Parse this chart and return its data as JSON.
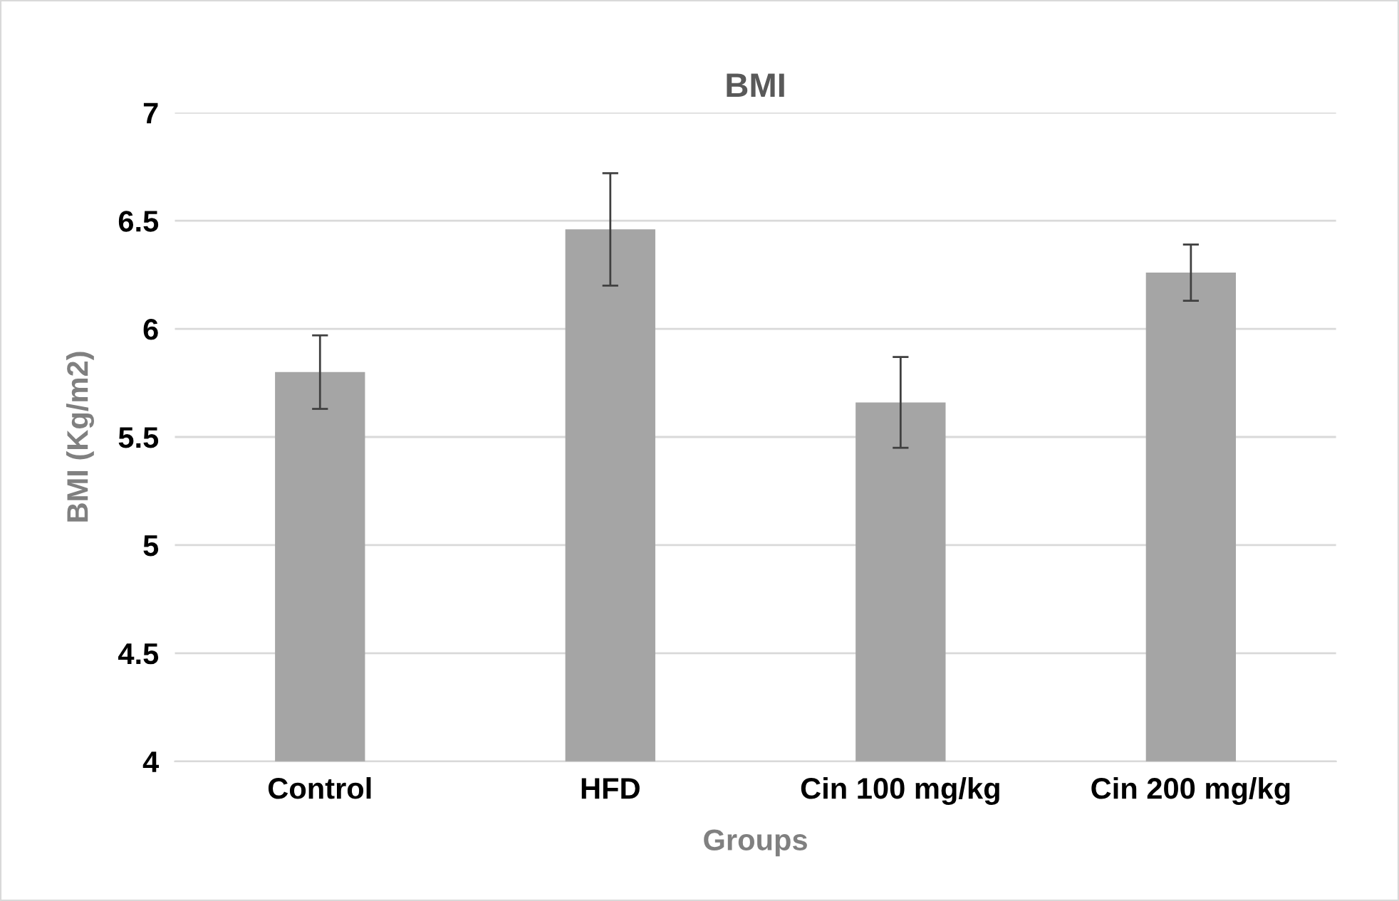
{
  "chart_data": {
    "type": "bar",
    "title": "BMI",
    "xlabel": "Groups",
    "ylabel": "BMI (Kg/m2)",
    "categories": [
      "Control",
      "HFD",
      "Cin 100 mg/kg",
      "Cin 200 mg/kg"
    ],
    "values": [
      5.8,
      6.46,
      5.66,
      6.26
    ],
    "errors": [
      0.17,
      0.26,
      0.21,
      0.13
    ],
    "color": "#a5a5a5",
    "ylim": [
      4,
      7
    ],
    "yticks": [
      4,
      4.5,
      5,
      5.5,
      6,
      6.5,
      7
    ],
    "grid": "y",
    "legend": false
  }
}
